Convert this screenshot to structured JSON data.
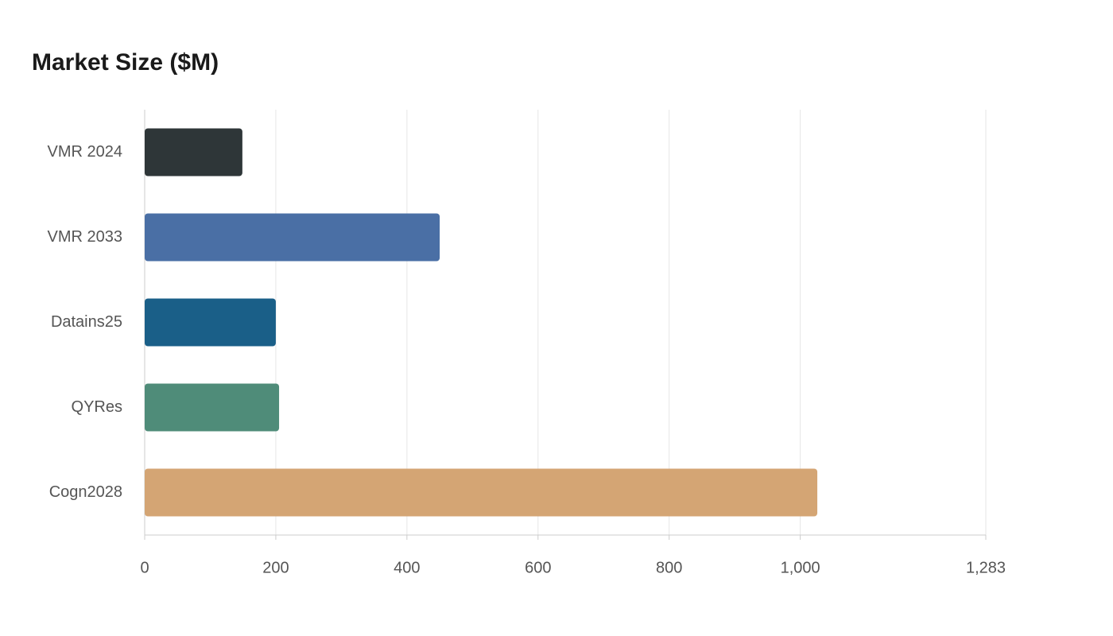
{
  "chart_data": {
    "type": "bar",
    "orientation": "horizontal",
    "title": "Market Size ($M)",
    "categories": [
      "VMR 2024",
      "VMR 2033",
      "Datains25",
      "QYRes",
      "Cogn2028"
    ],
    "values": [
      149,
      450,
      200,
      205,
      1026
    ],
    "colors": [
      "#2e3638",
      "#4a6fa5",
      "#1a5f88",
      "#4f8c79",
      "#d4a574"
    ],
    "xlim": [
      0,
      1283
    ],
    "xticks": [
      0,
      200,
      400,
      600,
      800,
      {
        "value": 1000,
        "label": "1,000"
      },
      {
        "value": 1283,
        "label": "1,283"
      }
    ],
    "grid": true
  }
}
